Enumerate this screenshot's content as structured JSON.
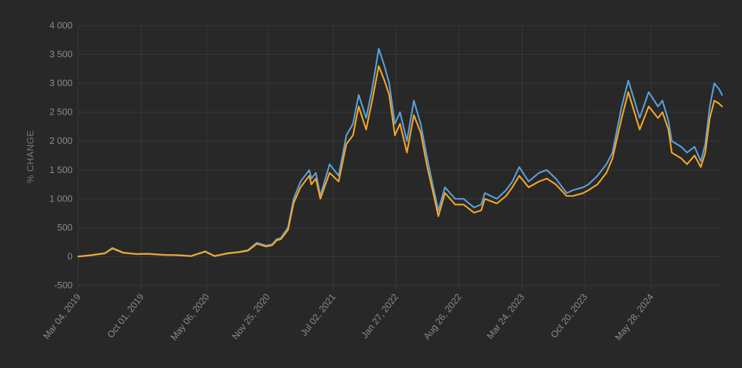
{
  "chart_data": {
    "type": "line",
    "title": "",
    "xlabel": "",
    "ylabel": "% CHANGE",
    "ylim": [
      -500,
      4000
    ],
    "yticks": [
      -500,
      0,
      500,
      1000,
      1500,
      2000,
      2500,
      3000,
      3500,
      4000
    ],
    "ytick_labels": [
      "-500",
      "0",
      "500",
      "1 000",
      "1 500",
      "2 000",
      "2 500",
      "3 000",
      "3 500",
      "4 000"
    ],
    "xlim": [
      "2019-03-04",
      "2025-01-20"
    ],
    "xticks": [
      "2019-03-04",
      "2019-10-01",
      "2020-05-06",
      "2020-11-25",
      "2021-07-02",
      "2022-01-27",
      "2022-08-26",
      "2023-03-24",
      "2023-10-20",
      "2024-05-28"
    ],
    "xtick_labels": [
      "Mar 04, 2019",
      "Oct 01, 2019",
      "May 06, 2020",
      "Nov 25, 2020",
      "Jul 02, 2021",
      "Jan 27, 2022",
      "Aug 26, 2022",
      "Mar 24, 2023",
      "Oct 20, 2023",
      "May 28, 2024"
    ],
    "grid": true,
    "x": [
      "2019-03-04",
      "2019-04-15",
      "2019-06-01",
      "2019-06-26",
      "2019-08-01",
      "2019-09-15",
      "2019-10-20",
      "2019-12-15",
      "2020-02-01",
      "2020-03-15",
      "2020-04-01",
      "2020-05-01",
      "2020-06-01",
      "2020-07-15",
      "2020-08-20",
      "2020-09-20",
      "2020-10-20",
      "2020-11-20",
      "2020-12-10",
      "2020-12-25",
      "2021-01-08",
      "2021-02-01",
      "2021-02-20",
      "2021-03-15",
      "2021-04-13",
      "2021-04-20",
      "2021-05-05",
      "2021-05-20",
      "2021-06-20",
      "2021-07-20",
      "2021-08-15",
      "2021-09-06",
      "2021-09-25",
      "2021-10-20",
      "2021-11-09",
      "2021-12-01",
      "2021-12-20",
      "2022-01-05",
      "2022-01-24",
      "2022-02-10",
      "2022-03-05",
      "2022-03-28",
      "2022-04-20",
      "2022-05-12",
      "2022-06-01",
      "2022-06-18",
      "2022-07-10",
      "2022-08-13",
      "2022-09-10",
      "2022-10-15",
      "2022-11-08",
      "2022-11-20",
      "2022-12-30",
      "2023-01-30",
      "2023-02-20",
      "2023-03-15",
      "2023-04-15",
      "2023-05-20",
      "2023-06-15",
      "2023-07-15",
      "2023-08-20",
      "2023-09-10",
      "2023-10-15",
      "2023-11-01",
      "2023-12-01",
      "2023-12-31",
      "2024-01-20",
      "2024-02-20",
      "2024-03-13",
      "2024-04-20",
      "2024-05-20",
      "2024-06-20",
      "2024-07-05",
      "2024-07-25",
      "2024-08-05",
      "2024-09-06",
      "2024-09-25",
      "2024-10-20",
      "2024-11-10",
      "2024-11-25",
      "2024-12-10",
      "2024-12-25",
      "2025-01-10",
      "2025-01-20"
    ],
    "series": [
      {
        "color": "#5aa0d8",
        "values": [
          0,
          25,
          60,
          150,
          70,
          45,
          50,
          30,
          25,
          10,
          40,
          90,
          10,
          60,
          80,
          110,
          240,
          190,
          210,
          300,
          320,
          500,
          1000,
          1300,
          1500,
          1350,
          1450,
          1050,
          1600,
          1400,
          2100,
          2300,
          2800,
          2400,
          2900,
          3600,
          3300,
          3000,
          2300,
          2500,
          2000,
          2700,
          2300,
          1700,
          1200,
          800,
          1200,
          1000,
          1000,
          850,
          900,
          1100,
          1000,
          1150,
          1300,
          1550,
          1300,
          1450,
          1500,
          1350,
          1100,
          1150,
          1200,
          1250,
          1400,
          1600,
          1800,
          2600,
          3050,
          2400,
          2850,
          2600,
          2700,
          2350,
          2000,
          1900,
          1800,
          1900,
          1650,
          1950,
          2600,
          3000,
          2900,
          2800
        ]
      },
      {
        "color": "#f5a623",
        "values": [
          0,
          22,
          55,
          140,
          65,
          42,
          46,
          28,
          22,
          8,
          36,
          85,
          8,
          55,
          75,
          100,
          220,
          175,
          195,
          280,
          300,
          460,
          930,
          1200,
          1400,
          1250,
          1350,
          1000,
          1450,
          1300,
          1950,
          2100,
          2600,
          2200,
          2700,
          3300,
          3050,
          2800,
          2100,
          2300,
          1800,
          2450,
          2150,
          1550,
          1100,
          700,
          1100,
          900,
          900,
          760,
          800,
          1000,
          920,
          1050,
          1200,
          1400,
          1200,
          1300,
          1350,
          1250,
          1050,
          1050,
          1100,
          1150,
          1250,
          1450,
          1700,
          2400,
          2850,
          2200,
          2600,
          2400,
          2500,
          2200,
          1800,
          1700,
          1600,
          1750,
          1550,
          1800,
          2400,
          2700,
          2650,
          2600
        ]
      }
    ]
  }
}
